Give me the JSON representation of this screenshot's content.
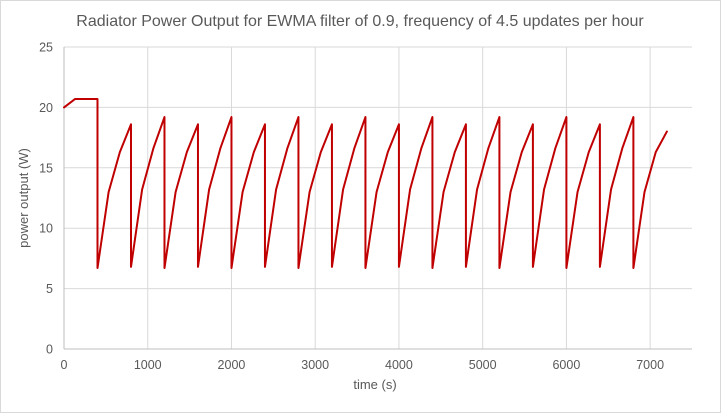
{
  "chart_data": {
    "type": "line",
    "title": "Radiator Power Output for EWMA filter of 0.9, frequency of 4.5 updates per hour",
    "xlabel": "time (s)",
    "ylabel": "power output (W)",
    "xlim": [
      0,
      7500
    ],
    "ylim": [
      0,
      25
    ],
    "xticks": [
      0,
      1000,
      2000,
      3000,
      4000,
      5000,
      6000,
      7000
    ],
    "yticks": [
      0,
      5,
      10,
      15,
      20,
      25
    ],
    "grid": true,
    "legend": "none",
    "series": [
      {
        "color": "#c00000",
        "x": [
          0,
          133,
          400,
          400,
          533,
          667,
          800,
          800,
          933,
          1067,
          1200,
          1200,
          1333,
          1467,
          1600,
          1600,
          1733,
          1867,
          2000,
          2000,
          2133,
          2267,
          2400,
          2400,
          2533,
          2667,
          2800,
          2800,
          2933,
          3067,
          3200,
          3200,
          3333,
          3467,
          3600,
          3600,
          3733,
          3867,
          4000,
          4000,
          4133,
          4267,
          4400,
          4400,
          4533,
          4667,
          4800,
          4800,
          4933,
          5067,
          5200,
          5200,
          5333,
          5467,
          5600,
          5600,
          5733,
          5867,
          6000,
          6000,
          6133,
          6267,
          6400,
          6400,
          6533,
          6667,
          6800,
          6800,
          6933,
          7067,
          7200
        ],
        "y": [
          20,
          20.7,
          20.7,
          6.7,
          13.0,
          16.3,
          18.6,
          6.8,
          13.2,
          16.6,
          19.2,
          6.7,
          13.0,
          16.3,
          18.6,
          6.8,
          13.2,
          16.6,
          19.2,
          6.7,
          13.0,
          16.3,
          18.6,
          6.8,
          13.2,
          16.6,
          19.2,
          6.7,
          13.0,
          16.3,
          18.6,
          6.8,
          13.2,
          16.6,
          19.2,
          6.7,
          13.0,
          16.3,
          18.6,
          6.8,
          13.2,
          16.6,
          19.2,
          6.7,
          13.0,
          16.3,
          18.6,
          6.8,
          13.2,
          16.6,
          19.2,
          6.7,
          13.0,
          16.3,
          18.6,
          6.8,
          13.2,
          16.6,
          19.2,
          6.7,
          13.0,
          16.3,
          18.6,
          6.8,
          13.2,
          16.6,
          19.2,
          6.7,
          13.0,
          16.3,
          18.0
        ]
      }
    ]
  }
}
